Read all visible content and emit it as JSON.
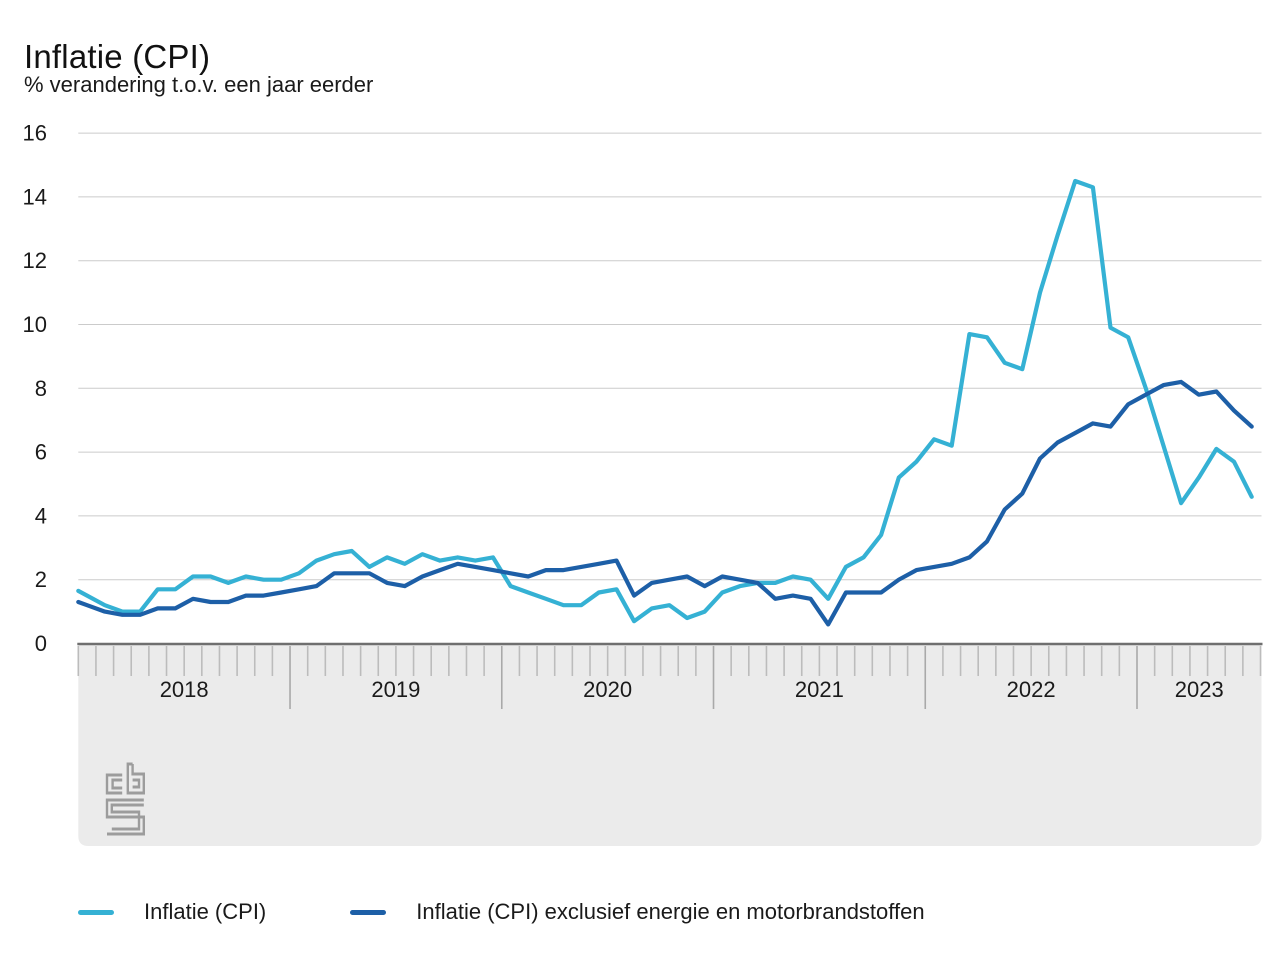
{
  "header": {
    "title": "Inflatie (CPI)",
    "subtitle": "% verandering t.o.v. een jaar eerder"
  },
  "legend": {
    "items": [
      {
        "label": "Inflatie (CPI)",
        "color": "#35b1d4"
      },
      {
        "label": "Inflatie (CPI) exclusief energie en motorbrandstoffen",
        "color": "#1d5fa7"
      }
    ]
  },
  "branding": {
    "logo": "cbs-logo"
  },
  "chart_data": {
    "type": "line",
    "title": "Inflatie (CPI)",
    "subtitle": "% verandering t.o.v. een jaar eerder",
    "ylim": [
      0,
      16
    ],
    "yticks": [
      0,
      2,
      4,
      6,
      8,
      10,
      12,
      14,
      16
    ],
    "grid": true,
    "legend_position": "bottom",
    "x_period": {
      "start": "2018-01",
      "end": "2023-07",
      "unit": "month"
    },
    "years": [
      "2018",
      "2019",
      "2020",
      "2021",
      "2022",
      "2023"
    ],
    "series": [
      {
        "name": "Inflatie (CPI)",
        "color": "#35b1d4",
        "values": [
          1.5,
          1.2,
          1.0,
          1.0,
          1.7,
          1.7,
          2.1,
          2.1,
          1.9,
          2.1,
          2.0,
          2.0,
          2.2,
          2.6,
          2.8,
          2.9,
          2.4,
          2.7,
          2.5,
          2.8,
          2.6,
          2.7,
          2.6,
          2.7,
          1.8,
          1.6,
          1.4,
          1.2,
          1.2,
          1.6,
          1.7,
          0.7,
          1.1,
          1.2,
          0.8,
          1.0,
          1.6,
          1.8,
          1.9,
          1.9,
          2.1,
          2.0,
          1.4,
          2.4,
          2.7,
          3.4,
          5.2,
          5.7,
          6.4,
          6.2,
          9.7,
          9.6,
          8.8,
          8.6,
          11.0,
          12.8,
          14.5,
          14.3,
          9.9,
          9.6,
          8.0,
          6.2,
          4.4,
          5.2,
          6.1,
          5.7,
          4.6
        ]
      },
      {
        "name": "Inflatie (CPI) exclusief energie en motorbrandstoffen",
        "color": "#1d5fa7",
        "values": [
          1.2,
          1.0,
          0.9,
          0.9,
          1.1,
          1.1,
          1.4,
          1.3,
          1.3,
          1.5,
          1.5,
          1.6,
          1.7,
          1.8,
          2.2,
          2.2,
          2.2,
          1.9,
          1.8,
          2.1,
          2.3,
          2.5,
          2.4,
          2.3,
          2.2,
          2.1,
          2.3,
          2.3,
          2.4,
          2.5,
          2.6,
          1.5,
          1.9,
          2.0,
          2.1,
          1.8,
          2.1,
          2.0,
          1.9,
          1.4,
          1.5,
          1.4,
          0.6,
          1.6,
          1.6,
          1.6,
          2.0,
          2.3,
          2.4,
          2.5,
          2.7,
          3.2,
          4.2,
          4.7,
          5.8,
          6.3,
          6.6,
          6.9,
          6.8,
          7.5,
          7.8,
          8.1,
          8.2,
          7.8,
          7.9,
          7.3,
          6.8
        ]
      }
    ],
    "style": {
      "gridline_color": "#cbcbcb",
      "axis_color": "#6f6f6f",
      "band_color": "#ebebeb",
      "tick_color": "#bcbcbc",
      "year_separator_color": "#a9a9a9",
      "logo_color": "#9c9c9c",
      "label_color": "#1a1a1a"
    }
  }
}
